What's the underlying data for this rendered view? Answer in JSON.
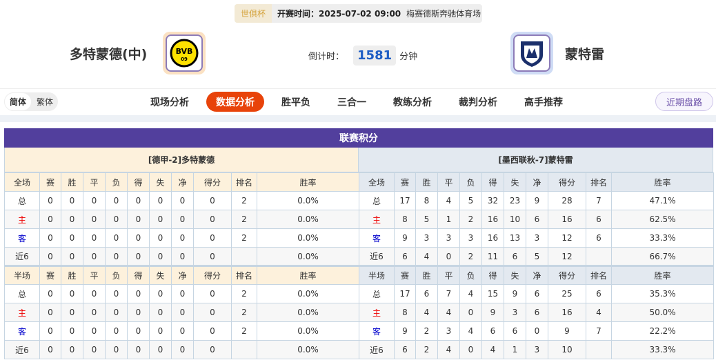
{
  "match": {
    "competition": "世俱杯",
    "start_time": "开赛时间：2025-07-02 09:00",
    "venue": "梅赛德斯奔驰体育场",
    "home_team": "多特蒙德(中)",
    "away_team": "蒙特雷",
    "countdown_label": "倒计时：",
    "countdown_value": "1581",
    "countdown_unit": "分钟"
  },
  "lang": {
    "simplified": "简体",
    "traditional": "繁体"
  },
  "tabs": [
    "现场分析",
    "数据分析",
    "胜平负",
    "三合一",
    "教练分析",
    "裁判分析",
    "高手推荐"
  ],
  "active_tab": "数据分析",
  "recent_button": "近期盘路",
  "section_title": "联赛积分",
  "colors": {
    "accent": "#e8430a",
    "section": "#523f9d",
    "home_header": "#fdf1dc",
    "away_header": "#e3e9f0"
  },
  "columns": [
    "赛",
    "胜",
    "平",
    "负",
    "得",
    "失",
    "净",
    "得分",
    "排名",
    "胜率"
  ],
  "left": {
    "label": "[德甲-2]多特蒙德",
    "full": {
      "label": "全场",
      "rows": [
        [
          "总",
          "0",
          "0",
          "0",
          "0",
          "0",
          "0",
          "0",
          "0",
          "2",
          "0.0%"
        ],
        [
          "主",
          "0",
          "0",
          "0",
          "0",
          "0",
          "0",
          "0",
          "0",
          "2",
          "0.0%"
        ],
        [
          "客",
          "0",
          "0",
          "0",
          "0",
          "0",
          "0",
          "0",
          "0",
          "2",
          "0.0%"
        ],
        [
          "近6",
          "0",
          "0",
          "0",
          "0",
          "0",
          "0",
          "0",
          "0",
          "",
          "0.0%"
        ]
      ]
    },
    "half": {
      "label": "半场",
      "rows": [
        [
          "总",
          "0",
          "0",
          "0",
          "0",
          "0",
          "0",
          "0",
          "0",
          "2",
          "0.0%"
        ],
        [
          "主",
          "0",
          "0",
          "0",
          "0",
          "0",
          "0",
          "0",
          "0",
          "2",
          "0.0%"
        ],
        [
          "客",
          "0",
          "0",
          "0",
          "0",
          "0",
          "0",
          "0",
          "0",
          "2",
          "0.0%"
        ],
        [
          "近6",
          "0",
          "0",
          "0",
          "0",
          "0",
          "0",
          "0",
          "0",
          "",
          "0.0%"
        ]
      ]
    }
  },
  "right": {
    "label": "[墨西联秋-7]蒙特雷",
    "full": {
      "label": "全场",
      "rows": [
        [
          "总",
          "17",
          "8",
          "4",
          "5",
          "32",
          "23",
          "9",
          "28",
          "7",
          "47.1%"
        ],
        [
          "主",
          "8",
          "5",
          "1",
          "2",
          "16",
          "10",
          "6",
          "16",
          "6",
          "62.5%"
        ],
        [
          "客",
          "9",
          "3",
          "3",
          "3",
          "16",
          "13",
          "3",
          "12",
          "6",
          "33.3%"
        ],
        [
          "近6",
          "6",
          "4",
          "0",
          "2",
          "11",
          "6",
          "5",
          "12",
          "",
          "66.7%"
        ]
      ]
    },
    "half": {
      "label": "半场",
      "rows": [
        [
          "总",
          "17",
          "6",
          "7",
          "4",
          "15",
          "9",
          "6",
          "25",
          "6",
          "35.3%"
        ],
        [
          "主",
          "8",
          "4",
          "4",
          "0",
          "9",
          "3",
          "6",
          "16",
          "4",
          "50.0%"
        ],
        [
          "客",
          "9",
          "2",
          "3",
          "4",
          "6",
          "6",
          "0",
          "9",
          "7",
          "22.2%"
        ],
        [
          "近6",
          "6",
          "2",
          "4",
          "0",
          "4",
          "1",
          "3",
          "10",
          "",
          "33.3%"
        ]
      ]
    }
  }
}
